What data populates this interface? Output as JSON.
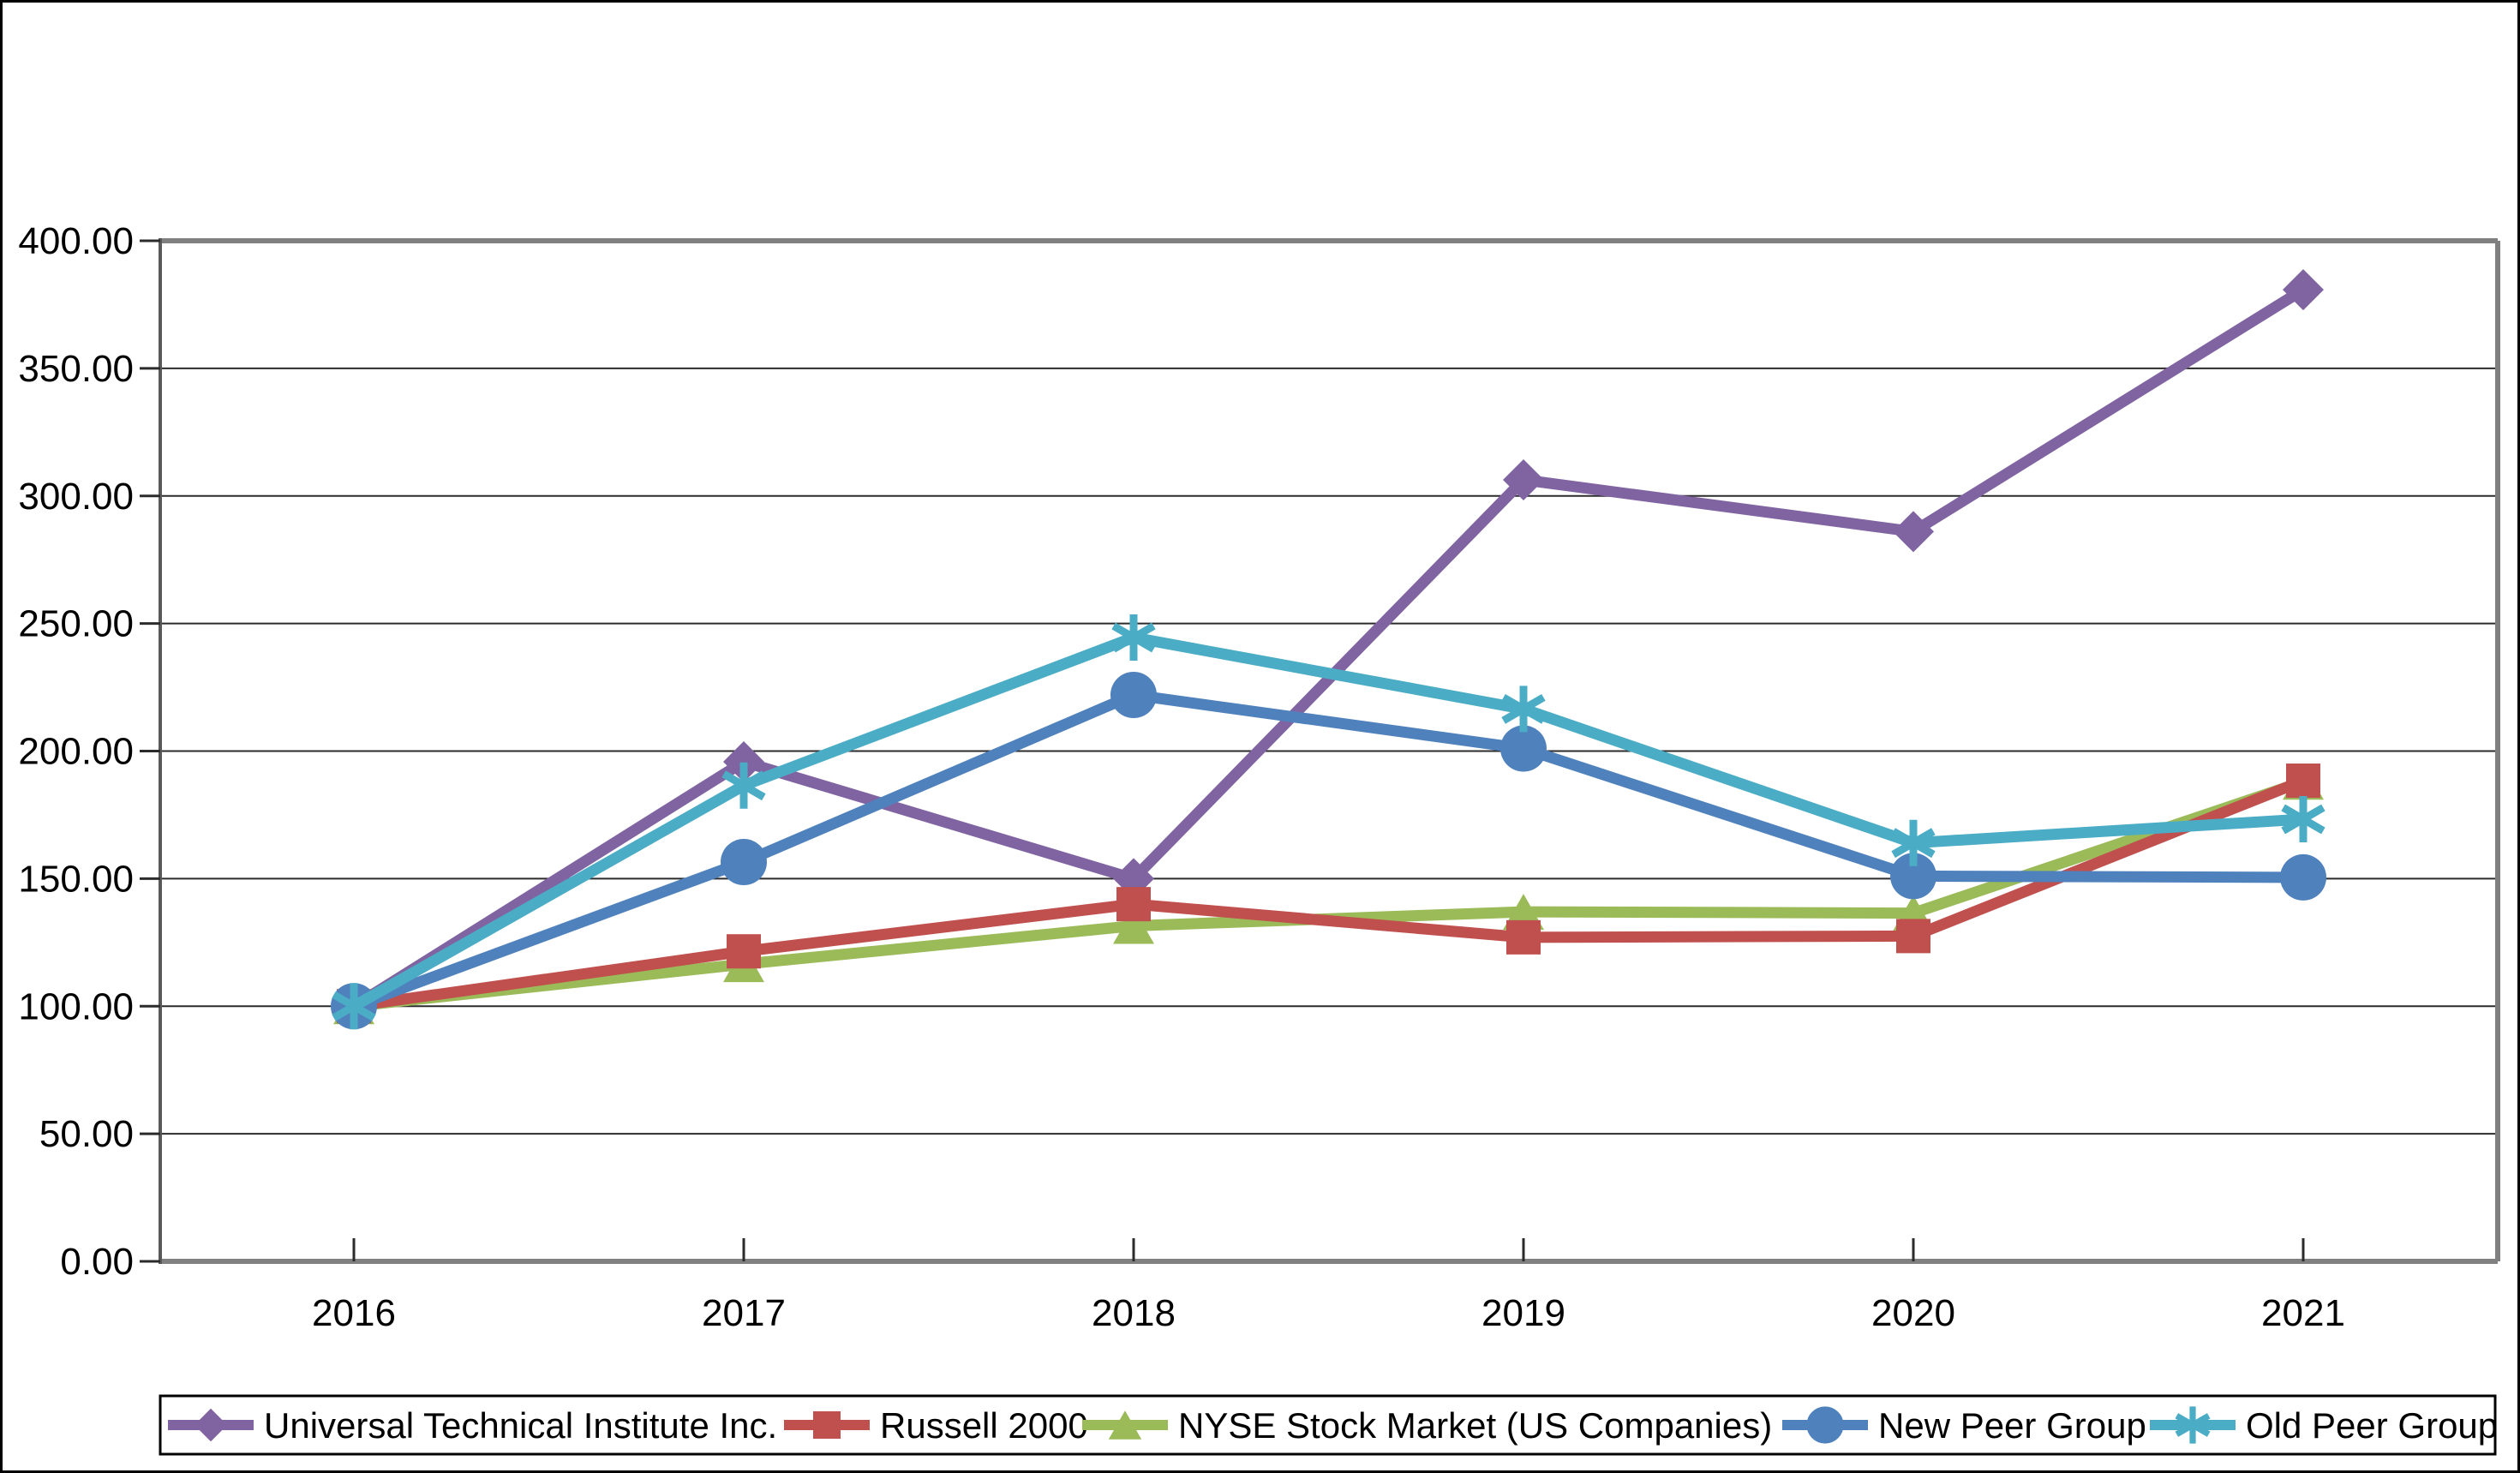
{
  "figure": {
    "background": "#ffffff",
    "outer_border_color": "#000000",
    "plot_border_gray": "#808080",
    "axis_line_color": "#595959",
    "gridline_color": "#2b2b2b"
  },
  "axes": {
    "y_tick_labels": [
      "0.00",
      "50.00",
      "100.00",
      "150.00",
      "200.00",
      "250.00",
      "300.00",
      "350.00",
      "400.00"
    ],
    "x_tick_labels": [
      "2016",
      "2017",
      "2018",
      "2019",
      "2020",
      "2021"
    ]
  },
  "legend": {
    "position": "bottom",
    "items": [
      {
        "label": "Universal Technical Institute Inc.",
        "marker": "diamond",
        "color": "#8064A2"
      },
      {
        "label": "Russell 2000",
        "marker": "square",
        "color": "#C0504D"
      },
      {
        "label": "NYSE Stock Market (US Companies)",
        "marker": "triangle",
        "color": "#9BBB59"
      },
      {
        "label": "New Peer Group",
        "marker": "circle",
        "color": "#4F81BD"
      },
      {
        "label": "Old Peer Group",
        "marker": "asterisk",
        "color": "#4BACC6"
      }
    ]
  },
  "chart_data": {
    "type": "line",
    "title": "",
    "xlabel": "",
    "ylabel": "",
    "categories": [
      "2016",
      "2017",
      "2018",
      "2019",
      "2020",
      "2021"
    ],
    "ylim": [
      0,
      400
    ],
    "ytick_step": 50,
    "grid": true,
    "legend_position": "bottom",
    "series": [
      {
        "name": "Universal Technical Institute Inc.",
        "color": "#8064A2",
        "marker": "diamond",
        "values": [
          100.0,
          195.8,
          150.0,
          306.3,
          286.0,
          380.8
        ]
      },
      {
        "name": "Russell 2000",
        "color": "#C0504D",
        "marker": "square",
        "values": [
          100.0,
          121.5,
          140.0,
          127.0,
          127.5,
          188.4
        ]
      },
      {
        "name": "NYSE Stock Market (US Companies)",
        "color": "#9BBB59",
        "marker": "triangle",
        "values": [
          100.0,
          116.5,
          131.5,
          137.0,
          136.5,
          188.0
        ],
        "note_2021_marker_hidden_behind_russell": true
      },
      {
        "name": "New Peer Group",
        "color": "#4F81BD",
        "marker": "circle",
        "values": [
          100.0,
          156.5,
          222.0,
          201.0,
          151.0,
          150.5
        ]
      },
      {
        "name": "Old Peer Group",
        "color": "#4BACC6",
        "marker": "asterisk",
        "values": [
          100.0,
          186.5,
          244.5,
          216.5,
          164.0,
          173.3
        ]
      }
    ],
    "z_order": [
      0,
      2,
      1,
      3,
      4
    ]
  }
}
